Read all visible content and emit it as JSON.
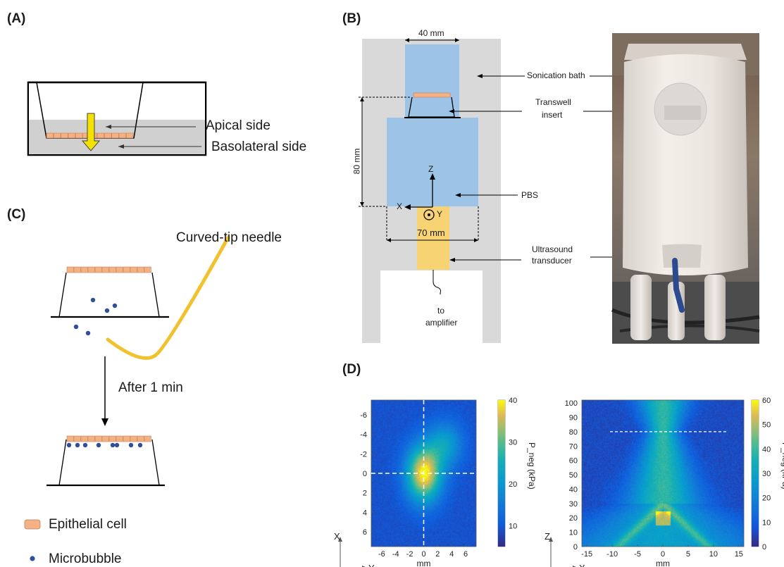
{
  "panel_a": {
    "label": "(A)",
    "apical_label": "Apical side",
    "basolateral_label": "Basolateral side"
  },
  "panel_b": {
    "label": "(B)",
    "width_top": "40 mm",
    "height_label": "80 mm",
    "width_bottom": "70 mm",
    "axis_z": "Z",
    "axis_x": "X",
    "axis_y": "Y",
    "sonication_bath": "Sonication bath",
    "transwell_line1": "Transwell",
    "transwell_line2": "insert",
    "pbs": "PBS",
    "ultrasound_line1": "Ultrasound",
    "ultrasound_line2": "transducer",
    "to_line1": "to",
    "to_line2": "amplifier"
  },
  "panel_c": {
    "label": "(C)",
    "needle_label": "Curved-tip needle",
    "after_label": "After 1 min",
    "legend_epithelial": "Epithelial cell",
    "legend_microbubble": "Microbubble"
  },
  "panel_d": {
    "label": "(D)"
  },
  "colors": {
    "epithelial": "#f4b183",
    "microbubble": "#2f4f9a",
    "needle": "#f2c12e",
    "arrow_yellow": "#f5e100",
    "water_blue": "#9dc3e6",
    "bath_gray": "#d9d9d9",
    "transducer": "#f7d373"
  },
  "chart_data": [
    {
      "type": "heatmap",
      "title": "",
      "xlabel": "mm",
      "x_axis_name": "Y",
      "y_axis_name": "X",
      "xticks": [
        "-6",
        "-4",
        "-2",
        "0",
        "2",
        "4",
        "6"
      ],
      "yticks": [
        "-6",
        "-4",
        "-2",
        "0",
        "2",
        "4",
        "6"
      ],
      "xlim": [
        -7.5,
        7.5
      ],
      "ylim": [
        -7.5,
        7.5
      ],
      "colorbar_label": "P_neg (kPa)",
      "colorbar_ticks": [
        "40",
        "30",
        "20",
        "10"
      ],
      "colorbar_range": [
        5,
        40
      ],
      "peak_value_kpa": 40,
      "peak_location": [
        0,
        0
      ],
      "crosshair": {
        "x": 0,
        "y": 0
      }
    },
    {
      "type": "heatmap",
      "title": "",
      "xlabel": "mm",
      "x_axis_name": "X",
      "y_axis_name": "Z",
      "xticks": [
        "-15",
        "-10",
        "-5",
        "0",
        "5",
        "10",
        "15"
      ],
      "yticks": [
        "100",
        "90",
        "80",
        "70",
        "60",
        "50",
        "40",
        "30",
        "20",
        "10",
        "0"
      ],
      "xlim": [
        -16,
        16
      ],
      "ylim": [
        0,
        102
      ],
      "colorbar_label": "P_neg (kPa)",
      "colorbar_ticks": [
        "60",
        "50",
        "40",
        "30",
        "20",
        "10",
        "0"
      ],
      "colorbar_range": [
        0,
        60
      ],
      "reference_line_z": 80
    }
  ]
}
